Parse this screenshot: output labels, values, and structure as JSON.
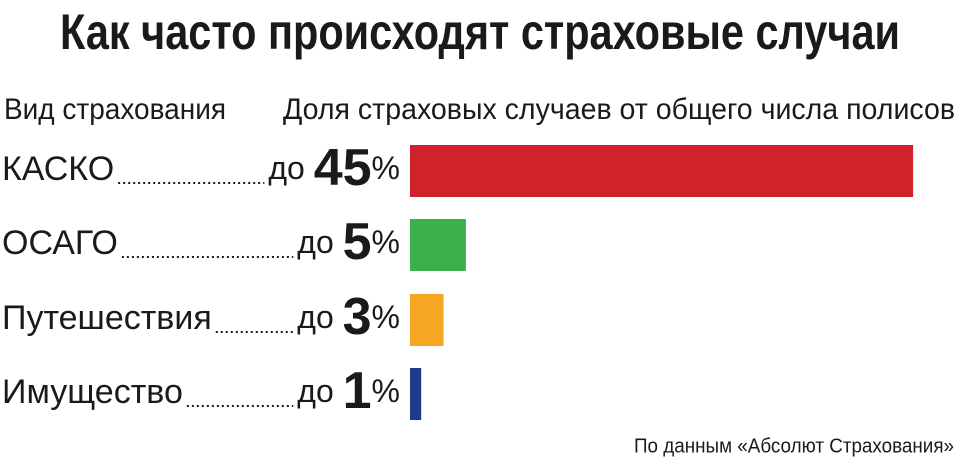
{
  "chart_data": {
    "type": "bar",
    "orientation": "horizontal",
    "title": "Как часто происходят страховые случаи",
    "category_header": "Вид страхования",
    "value_header": "Доля страховых случаев от общего числа полисов",
    "categories": [
      "КАСКО",
      "ОСАГО",
      "Путешествия",
      "Имущество"
    ],
    "values": [
      45,
      5,
      3,
      1
    ],
    "value_labels": [
      "до 45%",
      "до 5%",
      "до 3%",
      "до 1%"
    ],
    "colors": [
      "#d0222b",
      "#3cb04a",
      "#f5a623",
      "#1f3a8a"
    ],
    "source": "По данным «Абсолют Страхования»"
  }
}
